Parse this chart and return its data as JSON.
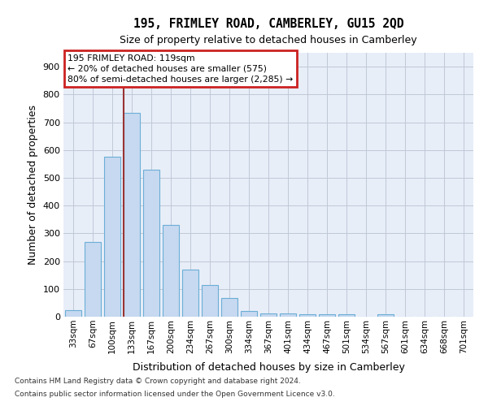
{
  "title": "195, FRIMLEY ROAD, CAMBERLEY, GU15 2QD",
  "subtitle": "Size of property relative to detached houses in Camberley",
  "xlabel": "Distribution of detached houses by size in Camberley",
  "ylabel": "Number of detached properties",
  "footer1": "Contains HM Land Registry data © Crown copyright and database right 2024.",
  "footer2": "Contains public sector information licensed under the Open Government Licence v3.0.",
  "categories": [
    "33sqm",
    "67sqm",
    "100sqm",
    "133sqm",
    "167sqm",
    "200sqm",
    "234sqm",
    "267sqm",
    "300sqm",
    "334sqm",
    "367sqm",
    "401sqm",
    "434sqm",
    "467sqm",
    "501sqm",
    "534sqm",
    "567sqm",
    "601sqm",
    "634sqm",
    "668sqm",
    "701sqm"
  ],
  "values": [
    22,
    270,
    575,
    733,
    530,
    330,
    170,
    115,
    68,
    20,
    13,
    12,
    8,
    8,
    10,
    0,
    8,
    0,
    0,
    0,
    0
  ],
  "bar_color": "#c6d9f0",
  "bar_edge_color": "#6baed6",
  "grid_color": "#c0c8d8",
  "background_color": "#e8eef8",
  "vline_color": "#993333",
  "vline_x": 2.58,
  "annotation_line1": "195 FRIMLEY ROAD: 119sqm",
  "annotation_line2": "← 20% of detached houses are smaller (575)",
  "annotation_line3": "80% of semi-detached houses are larger (2,285) →",
  "annotation_box_edgecolor": "#cc2222",
  "ylim": [
    0,
    950
  ],
  "yticks": [
    0,
    100,
    200,
    300,
    400,
    500,
    600,
    700,
    800,
    900
  ]
}
